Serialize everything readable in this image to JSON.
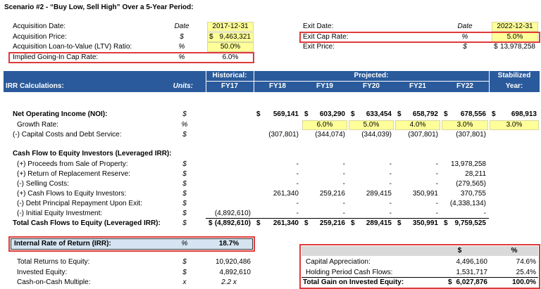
{
  "title": "Scenario #2 - “Buy Low, Sell High” Over a 5-Year Period:",
  "inputs_left": [
    {
      "label": "Acquisition Date:",
      "unit": "Date",
      "value": "2017-12-31",
      "input": true
    },
    {
      "label": "Acquisition Price:",
      "unit": "$",
      "value": [
        "$",
        "9,463,321"
      ],
      "input": true
    },
    {
      "label": "Acquisition Loan-to-Value (LTV) Ratio:",
      "unit": "%",
      "value": "50.0%",
      "input": true
    },
    {
      "label": "Implied Going-In Cap Rate:",
      "unit": "%",
      "value": "6.0%",
      "input": false,
      "highlight": true
    }
  ],
  "inputs_right": [
    {
      "label": "Exit Date:",
      "unit": "Date",
      "value": "2022-12-31",
      "input": true
    },
    {
      "label": "Exit Cap Rate:",
      "unit": "%",
      "value": "5.0%",
      "input": true,
      "highlight": true
    },
    {
      "label": "Exit Price:",
      "unit": "$",
      "value": [
        "$",
        "13,978,258"
      ],
      "input": false
    }
  ],
  "header": {
    "historical": "Historical:",
    "projected": "Projected:",
    "stabilized": "Stabilized",
    "section_label": "IRR Calculations:",
    "units_label": "Units:",
    "columns": [
      "FY17",
      "FY18",
      "FY19",
      "FY20",
      "FY21",
      "FY22",
      "Year:"
    ]
  },
  "rows": [
    {
      "label": "Net Operating Income (NOI):",
      "unit": "$",
      "bold": true,
      "cells": [
        null,
        [
          "$",
          "569,141"
        ],
        [
          "$",
          "603,290"
        ],
        [
          "$",
          "633,454"
        ],
        [
          "$",
          "658,792"
        ],
        [
          "$",
          "678,556"
        ],
        [
          "$",
          "698,913"
        ]
      ]
    },
    {
      "label": "Growth Rate:",
      "unit": "%",
      "indent": true,
      "input": true,
      "cells": [
        null,
        null,
        "6.0%",
        "5.0%",
        "4.0%",
        "3.0%",
        "3.0%"
      ]
    },
    {
      "label": "(-) Capital Costs and Debt Service:",
      "unit": "$",
      "cells": [
        null,
        "(307,801)",
        "(344,074)",
        "(344,039)",
        "(307,801)",
        "(307,801)",
        null
      ]
    },
    {
      "label": "Cash Flow to Equity Investors (Leveraged IRR):",
      "bold": true,
      "cells": []
    },
    {
      "label": "(+) Proceeds from Sale of Property:",
      "unit": "$",
      "indent": true,
      "cells": [
        null,
        "-",
        "-",
        "-",
        "-",
        "13,978,258",
        null
      ]
    },
    {
      "label": "(+) Return of Replacement Reserve:",
      "unit": "$",
      "indent": true,
      "cells": [
        null,
        "-",
        "-",
        "-",
        "-",
        "28,211",
        null
      ]
    },
    {
      "label": "(-) Selling Costs:",
      "unit": "$",
      "indent": true,
      "cells": [
        null,
        "-",
        "-",
        "-",
        "-",
        "(279,565)",
        null
      ]
    },
    {
      "label": "(+) Cash Flows to Equity Investors:",
      "unit": "$",
      "indent": true,
      "cells": [
        null,
        "261,340",
        "259,216",
        "289,415",
        "350,991",
        "370,755",
        null
      ]
    },
    {
      "label": "(-) Debt Principal Repayment Upon Exit:",
      "unit": "$",
      "indent": true,
      "cells": [
        null,
        "-",
        "-",
        "-",
        "-",
        "(4,338,134)",
        null
      ]
    },
    {
      "label": "(-) Initial Equity Investment:",
      "unit": "$",
      "indent": true,
      "cells": [
        "(4,892,610)",
        "-",
        "-",
        "-",
        "-",
        "-",
        null
      ]
    },
    {
      "label": "Total Cash Flows to Equity (Leveraged IRR):",
      "unit": "$",
      "bold": true,
      "total": true,
      "cells": [
        [
          "$",
          "(4,892,610)"
        ],
        [
          "$",
          "261,340"
        ],
        [
          "$",
          "259,216"
        ],
        [
          "$",
          "289,415"
        ],
        [
          "$",
          "350,991"
        ],
        [
          "$",
          "9,759,525"
        ],
        null
      ]
    }
  ],
  "irr": {
    "label": "Internal Rate of Return (IRR):",
    "unit": "%",
    "value": "18.7%"
  },
  "summary": [
    {
      "label": "Total Returns to Equity:",
      "unit": "$",
      "value": "10,920,486"
    },
    {
      "label": "Invested Equity:",
      "unit": "$",
      "value": "4,892,610"
    },
    {
      "label": "Cash-on-Cash Multiple:",
      "unit": "x",
      "value": "2.2 x"
    }
  ],
  "gain_table": {
    "headers": [
      "$",
      "%"
    ],
    "rows": [
      {
        "label": "Capital Appreciation:",
        "amount": "4,496,160",
        "pct": "74.6%"
      },
      {
        "label": "Holding Period Cash Flows:",
        "amount": "1,531,717",
        "pct": "25.4%"
      }
    ],
    "total": {
      "label": "Total Gain on Invested Equity:",
      "cur": "$",
      "amount": "6,027,876",
      "pct": "100.0%"
    }
  }
}
